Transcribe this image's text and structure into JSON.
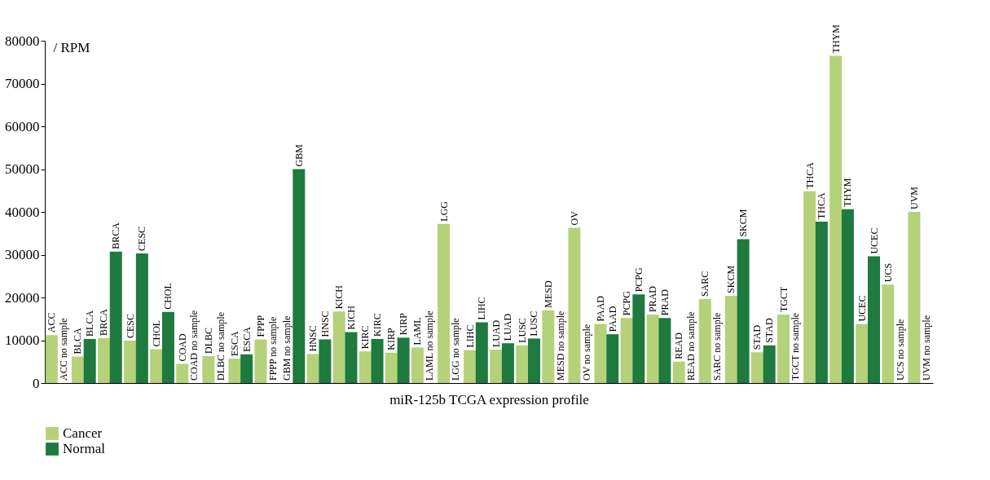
{
  "chart_data": {
    "type": "bar",
    "xlabel": "miR-125b TCGA expression profile",
    "ylabel": "/ RPM",
    "categories": [
      null,
      null,
      null,
      null,
      null,
      null,
      null,
      null,
      null,
      null,
      null,
      null,
      null,
      null,
      null,
      null,
      null,
      null,
      null,
      null,
      null,
      null,
      null,
      null,
      null,
      null,
      null,
      null,
      null,
      null,
      null,
      null,
      null,
      null
    ],
    "series": [
      {
        "name": "Cancer",
        "color": "#b5d17a",
        "values": [
          11200,
          6200,
          10500,
          9900,
          7900,
          4500,
          6300,
          5700,
          10200,
          null,
          6800,
          16700,
          7400,
          7100,
          8300,
          37200,
          7700,
          7800,
          8800,
          17000,
          36300,
          13800,
          15200,
          16000,
          5000,
          19600,
          20400,
          7200,
          16000,
          44800,
          76500,
          13800,
          23000,
          40000
        ],
        "value_labels": [
          "ACC",
          "BLCA",
          "BRCA",
          "CESC",
          "CHOL",
          "COAD",
          "DLBC",
          "ESCA",
          "FPPP",
          "GBM no sample",
          "HNSC",
          "KICH",
          "KIRC",
          "KIRP",
          "LAML",
          "LGG",
          "LIHC",
          "LUAD",
          "LUSC",
          "MESD",
          "OV",
          "PAAD",
          "PCPG",
          "PRAD",
          "READ",
          "SARC",
          "SKCM",
          "STAD",
          "TGCT",
          "THCA",
          "THYM",
          "UCEC",
          "UCS",
          "UVM"
        ]
      },
      {
        "name": "Normal",
        "color": "#1e7a3e",
        "values": [
          null,
          10300,
          30700,
          30300,
          16600,
          null,
          null,
          6700,
          null,
          50000,
          10200,
          11900,
          10300,
          10600,
          null,
          null,
          14200,
          9300,
          10400,
          null,
          null,
          11400,
          20700,
          15200,
          null,
          null,
          33600,
          8800,
          null,
          37700,
          40600,
          29600,
          null,
          null
        ],
        "value_labels": [
          "ACC no sample",
          "BLCA",
          "BRCA",
          "CESC",
          "CHOL",
          "COAD no sample",
          "DLBC no sample",
          "ESCA",
          "FPPP no sample",
          "GBM",
          "HNSC",
          "KICH",
          "KIRC",
          "KIRP",
          "LAML no sample",
          "LGG no sample",
          "LIHC",
          "LUAD",
          "LUSC",
          "MESD no sample",
          "OV no sample",
          "PAAD",
          "PCPG",
          "PRAD",
          "READ no sample",
          "SARC no sample",
          "SKCM",
          "STAD",
          "TGCT no sample",
          "THCA",
          "THYM",
          "UCEC",
          "UCS no sample",
          "UVM no sample"
        ]
      }
    ],
    "ylim": [
      0,
      80000
    ],
    "yticks": [
      0,
      10000,
      20000,
      30000,
      40000,
      50000,
      60000,
      70000,
      80000
    ],
    "grid": false,
    "legend": "bottom",
    "tick_labels": "y"
  }
}
